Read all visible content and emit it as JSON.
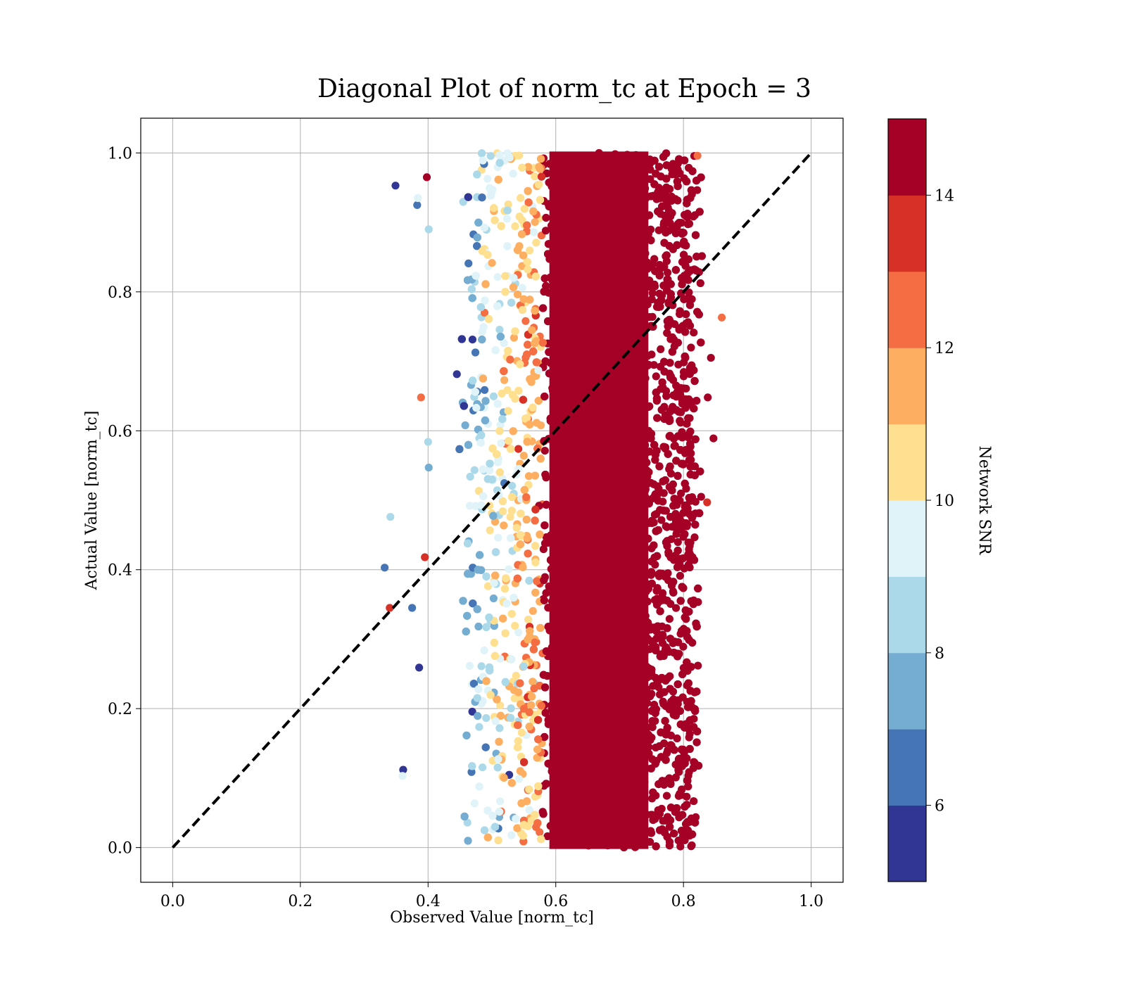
{
  "chart_data": {
    "type": "scatter",
    "title": "Diagonal Plot of norm_tc at Epoch = 3",
    "xlabel": "Observed Value [norm_tc]",
    "ylabel": "Actual Value [norm_tc]",
    "xlim": [
      -0.05,
      1.05
    ],
    "ylim": [
      -0.05,
      1.05
    ],
    "xticks": [
      0.0,
      0.2,
      0.4,
      0.6,
      0.8,
      1.0
    ],
    "yticks": [
      0.0,
      0.2,
      0.4,
      0.6,
      0.8,
      1.0
    ],
    "xtick_labels": [
      "0.0",
      "0.2",
      "0.4",
      "0.6",
      "0.8",
      "1.0"
    ],
    "ytick_labels": [
      "0.0",
      "0.2",
      "0.4",
      "0.6",
      "0.8",
      "1.0"
    ],
    "grid": true,
    "reference_line": {
      "x": [
        0,
        1
      ],
      "y": [
        0,
        1
      ],
      "style": "dashed",
      "color": "#000000"
    },
    "color_variable": "Network SNR",
    "colorbar": {
      "label": "Network SNR",
      "range": [
        5,
        15
      ],
      "ticks": [
        6,
        8,
        10,
        12,
        14
      ],
      "tick_labels": [
        "6",
        "8",
        "10",
        "12",
        "14"
      ],
      "bins": [
        5,
        6,
        7,
        8,
        9,
        10,
        11,
        12,
        13,
        14,
        15
      ],
      "colors": [
        "#313695",
        "#4575b4",
        "#74add1",
        "#abd9e9",
        "#e0f3f8",
        "#fee090",
        "#fdae61",
        "#f46d43",
        "#d73027",
        "#a50026"
      ]
    },
    "distribution": {
      "x_range_core": [
        0.45,
        0.82
      ],
      "x_center": 0.65,
      "y_range": [
        0.0,
        1.0
      ],
      "trend": "low SNR points concentrate at small observed values; high SNR points dominate around 0.6–0.8"
    },
    "outliers": [
      {
        "x": 0.349,
        "y": 0.953,
        "snr": 5.2
      },
      {
        "x": 0.383,
        "y": 0.925,
        "snr": 6.2
      },
      {
        "x": 0.384,
        "y": 0.935,
        "snr": 9.6
      },
      {
        "x": 0.86,
        "y": 0.763,
        "snr": 12.6
      },
      {
        "x": 0.847,
        "y": 0.589,
        "snr": 14.8
      },
      {
        "x": 0.837,
        "y": 0.497,
        "snr": 13.6
      },
      {
        "x": 0.838,
        "y": 0.648,
        "snr": 14.8
      },
      {
        "x": 0.843,
        "y": 0.705,
        "snr": 14.8
      },
      {
        "x": 0.389,
        "y": 0.648,
        "snr": 12.6
      },
      {
        "x": 0.341,
        "y": 0.476,
        "snr": 8.5
      },
      {
        "x": 0.332,
        "y": 0.403,
        "snr": 6.4
      },
      {
        "x": 0.34,
        "y": 0.345,
        "snr": 13.6
      },
      {
        "x": 0.375,
        "y": 0.345,
        "snr": 6.2
      },
      {
        "x": 0.386,
        "y": 0.259,
        "snr": 5.2
      },
      {
        "x": 0.361,
        "y": 0.112,
        "snr": 5.2
      },
      {
        "x": 0.36,
        "y": 0.103,
        "snr": 9.5
      },
      {
        "x": 0.395,
        "y": 0.418,
        "snr": 13.6
      },
      {
        "x": 0.4,
        "y": 0.584,
        "snr": 8.5
      },
      {
        "x": 0.401,
        "y": 0.547,
        "snr": 7.4
      },
      {
        "x": 0.401,
        "y": 0.89,
        "snr": 8.5
      },
      {
        "x": 0.398,
        "y": 0.965,
        "snr": 14.8
      },
      {
        "x": 0.822,
        "y": 0.996,
        "snr": 12.6
      }
    ]
  }
}
